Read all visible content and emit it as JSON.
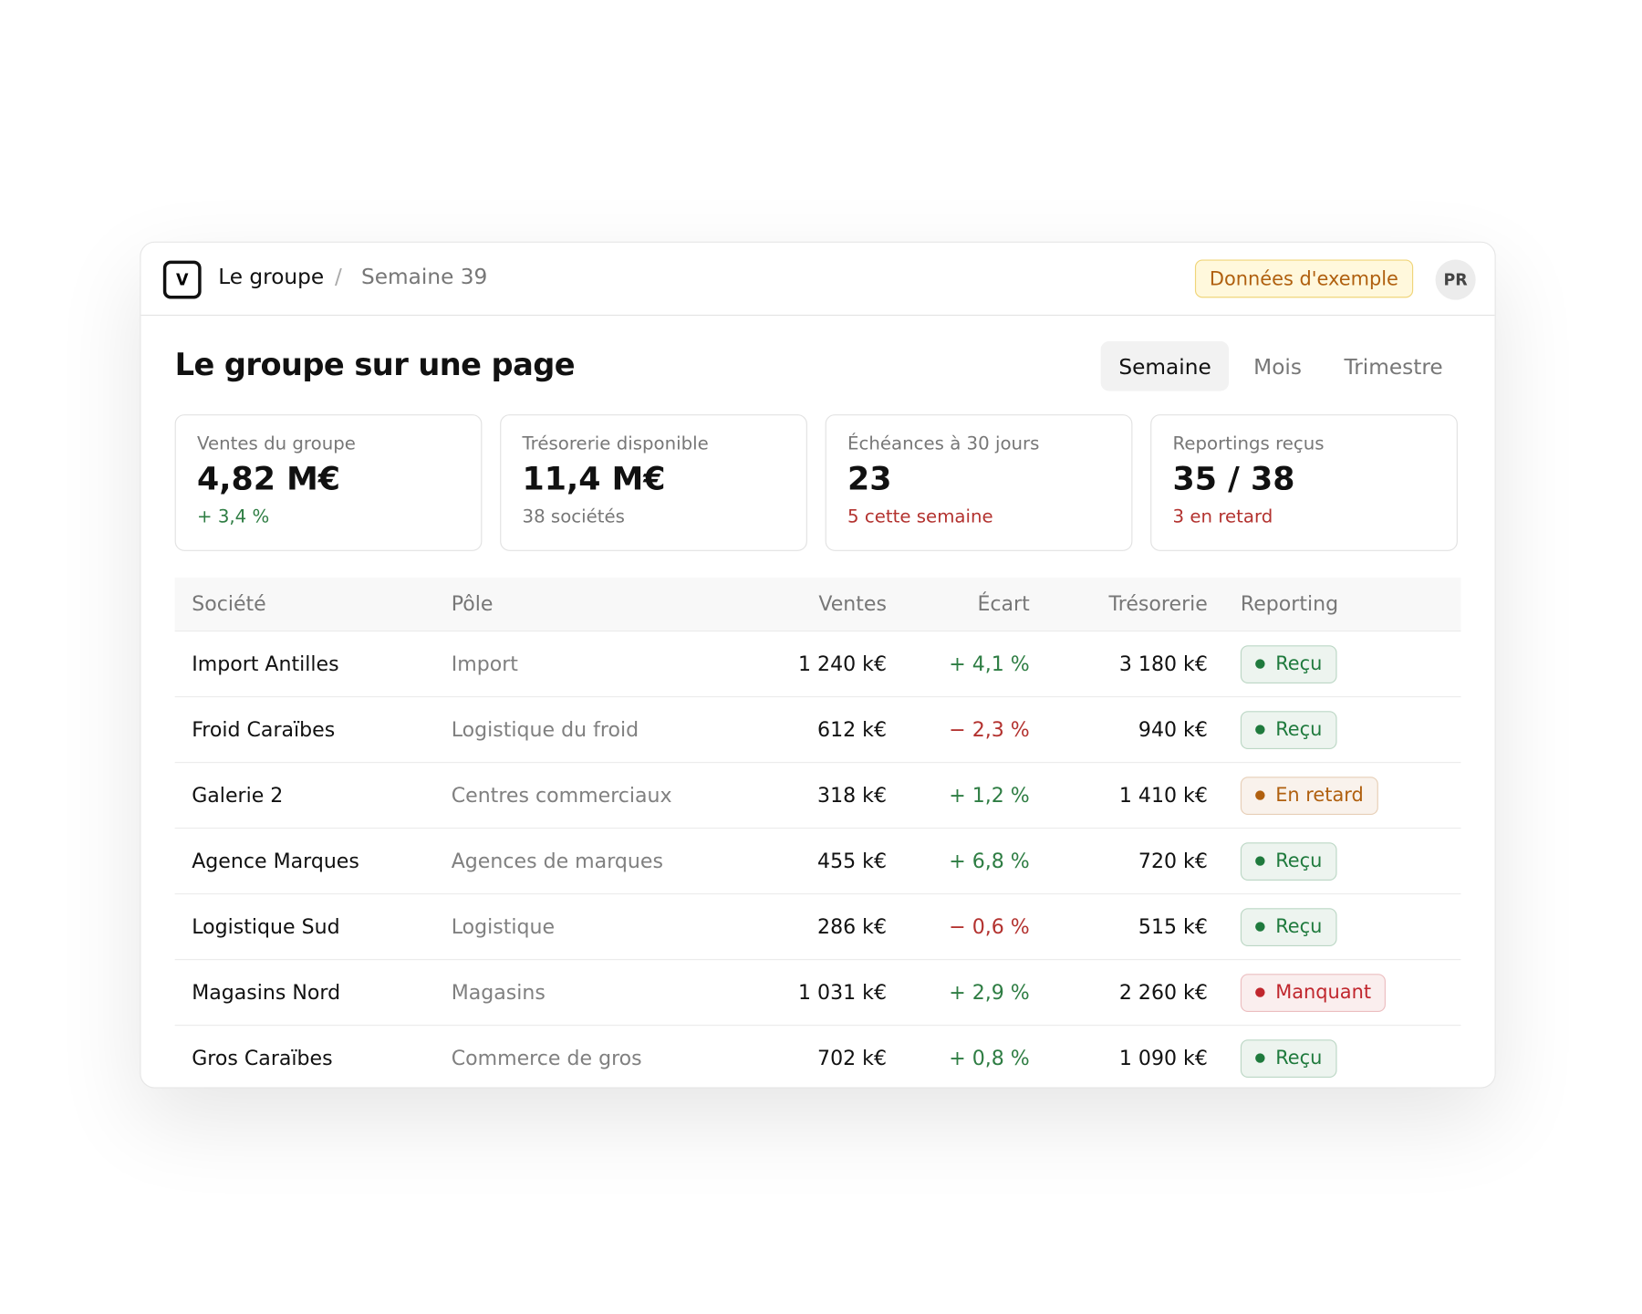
{
  "header": {
    "logo": "V",
    "breadcrumb": [
      "Le groupe",
      "Semaine 39"
    ],
    "badge": "Données d'exemple",
    "avatar": "PR"
  },
  "title": "Le groupe sur une page",
  "tabs": [
    "Semaine",
    "Mois",
    "Trimestre"
  ],
  "kpis": [
    {
      "label": "Ventes du groupe",
      "value": "4,82 M€",
      "note": "+ 3,4 %",
      "note_color": "#2e7d43"
    },
    {
      "label": "Trésorerie disponible",
      "value": "11,4 M€",
      "note": "38 sociétés",
      "note_color": "#777777"
    },
    {
      "label": "Échéances à 30 jours",
      "value": "23",
      "note": "5 cette semaine",
      "note_color": "#b3322f"
    },
    {
      "label": "Reportings reçus",
      "value": "35 / 38",
      "note": "3 en retard",
      "note_color": "#b3322f"
    }
  ],
  "table": {
    "columns": [
      "Société",
      "Pôle",
      "Ventes",
      "Écart",
      "Trésorerie",
      "Reporting"
    ],
    "rows": [
      {
        "societe": "Import Antilles",
        "pole": "Import",
        "ventes": "1 240 k€",
        "ecart": "+ 4,1 %",
        "ecart_color": "#2e7d43",
        "tresorerie": "3 180 k€",
        "reporting": "Reçu",
        "reporting_color": "#1f7a3d"
      },
      {
        "societe": "Froid Caraïbes",
        "pole": "Logistique du froid",
        "ventes": "612 k€",
        "ecart": "− 2,3 %",
        "ecart_color": "#b3322f",
        "tresorerie": "940 k€",
        "reporting": "Reçu",
        "reporting_color": "#1f7a3d"
      },
      {
        "societe": "Galerie 2",
        "pole": "Centres commerciaux",
        "ventes": "318 k€",
        "ecart": "+ 1,2 %",
        "ecart_color": "#2e7d43",
        "tresorerie": "1 410 k€",
        "reporting": "En retard",
        "reporting_color": "#b0600f"
      },
      {
        "societe": "Agence Marques",
        "pole": "Agences de marques",
        "ventes": "455 k€",
        "ecart": "+ 6,8 %",
        "ecart_color": "#2e7d43",
        "tresorerie": "720 k€",
        "reporting": "Reçu",
        "reporting_color": "#1f7a3d"
      },
      {
        "societe": "Logistique Sud",
        "pole": "Logistique",
        "ventes": "286 k€",
        "ecart": "− 0,6 %",
        "ecart_color": "#b3322f",
        "tresorerie": "515 k€",
        "reporting": "Reçu",
        "reporting_color": "#1f7a3d"
      },
      {
        "societe": "Magasins Nord",
        "pole": "Magasins",
        "ventes": "1 031 k€",
        "ecart": "+ 2,9 %",
        "ecart_color": "#2e7d43",
        "tresorerie": "2 260 k€",
        "reporting": "Manquant",
        "reporting_color": "#c0262d"
      },
      {
        "societe": "Gros Caraïbes",
        "pole": "Commerce de gros",
        "ventes": "702 k€",
        "ecart": "+ 0,8 %",
        "ecart_color": "#2e7d43",
        "tresorerie": "1 090 k€",
        "reporting": "Reçu",
        "reporting_color": "#1f7a3d"
      }
    ]
  }
}
